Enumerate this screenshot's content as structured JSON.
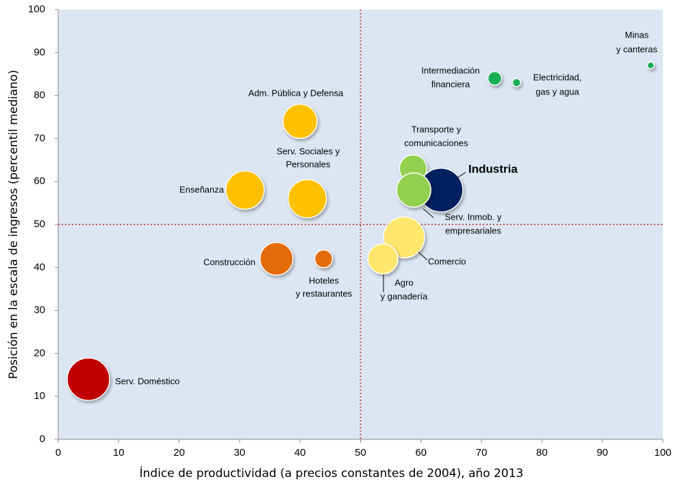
{
  "chart_data": {
    "type": "bubble",
    "xlabel": "Índice de productividad (a precios constantes de 2004), año 2013",
    "ylabel": "Posición en la escala de ingresos (percentil mediano)",
    "xlim": [
      0,
      100
    ],
    "ylim": [
      0,
      100
    ],
    "xticks": [
      0,
      10,
      20,
      30,
      40,
      50,
      60,
      70,
      80,
      90,
      100
    ],
    "yticks": [
      0,
      10,
      20,
      30,
      40,
      50,
      60,
      70,
      80,
      90,
      100
    ],
    "reference_lines": {
      "x": 50,
      "y": 50,
      "color": "#c0504d"
    },
    "background": "#dce6f2",
    "points": [
      {
        "label": [
          "Minas",
          "y canteras"
        ],
        "x": 98,
        "y": 87,
        "size": 25,
        "color": "#1aae54"
      },
      {
        "label": [
          "Intermediación",
          "financiera"
        ],
        "x": 72.2,
        "y": 84,
        "size": 100,
        "color": "#1aae54"
      },
      {
        "label": [
          "Electricidad,",
          "gas y agua"
        ],
        "x": 75.8,
        "y": 83,
        "size": 36,
        "color": "#1aae54"
      },
      {
        "label": [
          "Adm. Pública y Defensa"
        ],
        "x": 40,
        "y": 74,
        "size": 625,
        "color": "#ffc000"
      },
      {
        "label": [
          "Transporte y",
          "comunicaciones"
        ],
        "x": 58.7,
        "y": 63,
        "size": 400,
        "color": "#92d050"
      },
      {
        "label": [
          "Serv. Sociales y",
          "Personales"
        ],
        "x": 41.2,
        "y": 56,
        "size": 784,
        "color": "#ffc000"
      },
      {
        "label": [
          "Industria"
        ],
        "x": 63.3,
        "y": 58,
        "size": 1024,
        "color": "#002060",
        "bold": true
      },
      {
        "label": [
          "Enseñanza"
        ],
        "x": 30.9,
        "y": 58,
        "size": 784,
        "color": "#ffc000"
      },
      {
        "label": [
          "Serv. Inmob. y",
          "empresariales"
        ],
        "x": 58.8,
        "y": 58,
        "size": 625,
        "color": "#92d050"
      },
      {
        "label": [
          "Comercio"
        ],
        "x": 57.2,
        "y": 47,
        "size": 900,
        "color": "#ffe66d"
      },
      {
        "label": [
          "Construcción"
        ],
        "x": 36.1,
        "y": 42,
        "size": 576,
        "color": "#e36c0a"
      },
      {
        "label": [
          "Hoteles",
          "y restaurantes"
        ],
        "x": 43.9,
        "y": 42,
        "size": 169,
        "color": "#e36c0a"
      },
      {
        "label": [
          "Agro",
          "y ganadería"
        ],
        "x": 53.7,
        "y": 42,
        "size": 484,
        "color": "#ffe66d"
      },
      {
        "label": [
          "Serv. Doméstico"
        ],
        "x": 5,
        "y": 14,
        "size": 961,
        "color": "#c00000"
      }
    ]
  }
}
